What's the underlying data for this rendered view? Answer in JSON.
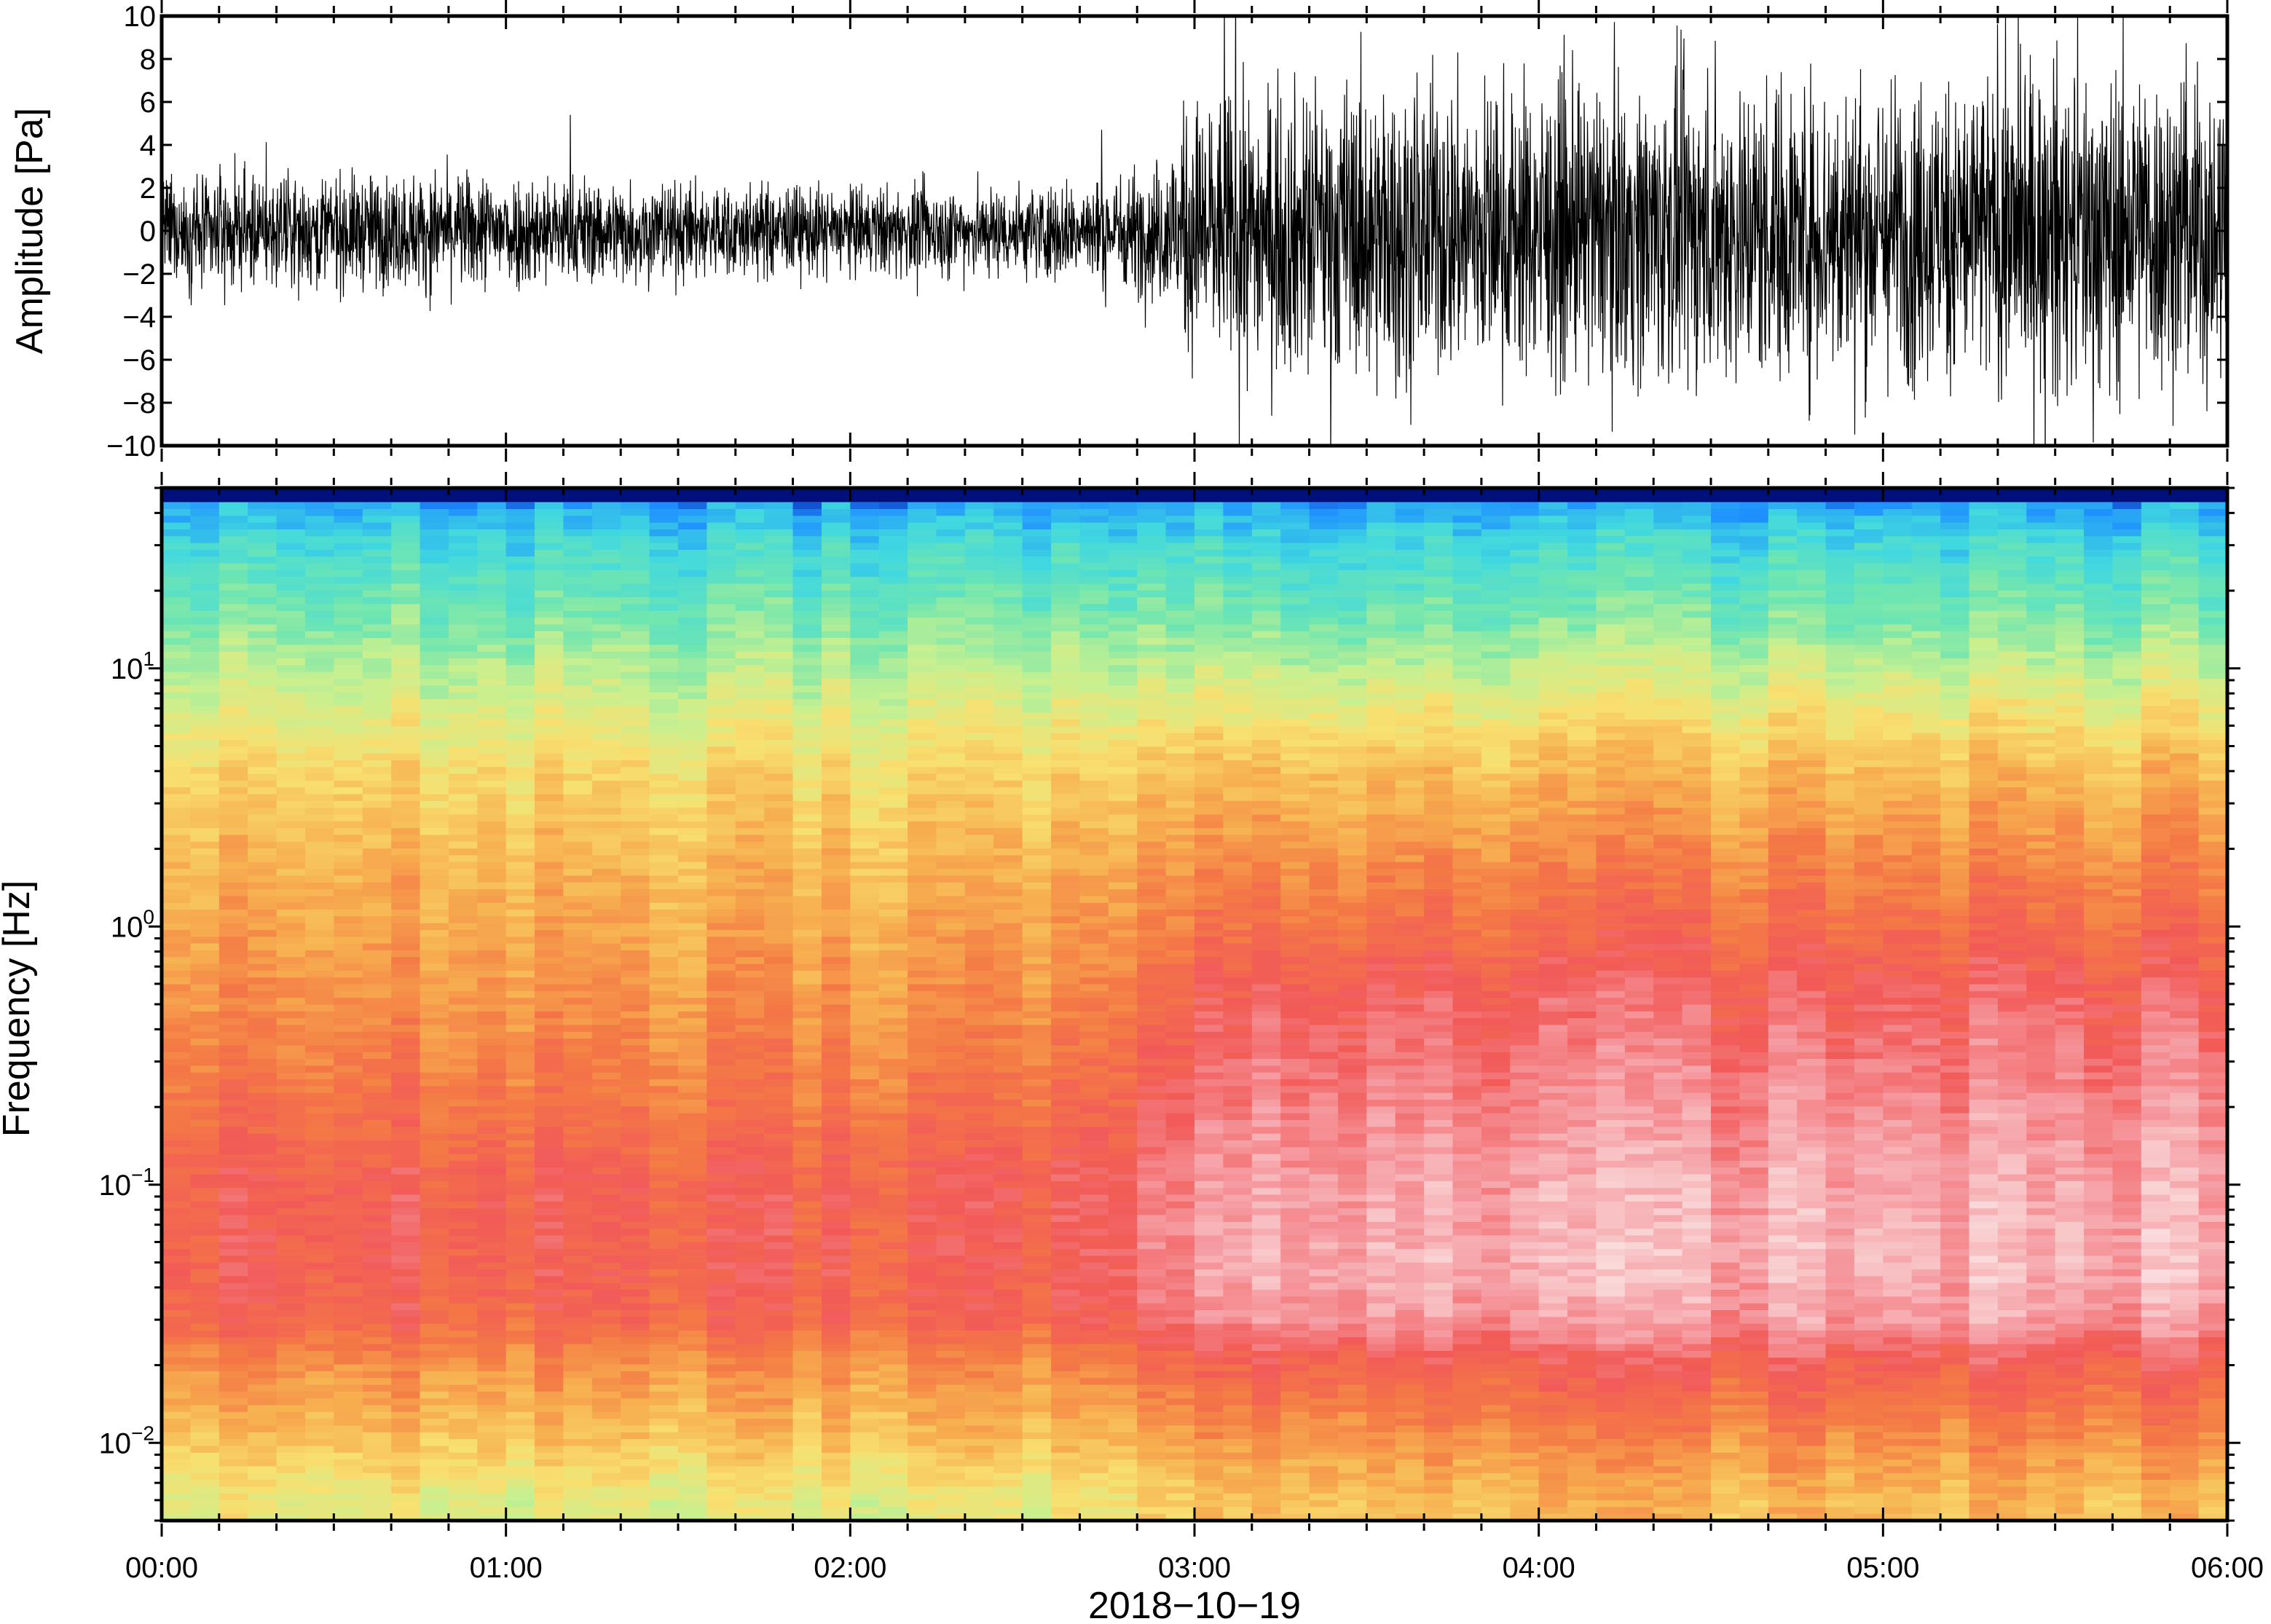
{
  "chart_data": [
    {
      "type": "line",
      "panel": "waveform",
      "ylabel": "Amplitude [Pa]",
      "ylim": [
        -10,
        10
      ],
      "yticks": [
        10,
        8,
        6,
        4,
        2,
        0,
        -2,
        -4,
        -6,
        -8,
        -10
      ],
      "ytick_labels": [
        "10",
        "8",
        "6",
        "4",
        "2",
        "0",
        "−2",
        "−4",
        "−6",
        "−8",
        "−10"
      ],
      "xlim_hours": [
        0,
        6
      ],
      "amplitude_envelope": {
        "x_hours": [
          0.0,
          0.5,
          1.0,
          1.5,
          2.0,
          2.5,
          2.75,
          2.9,
          3.0,
          3.5,
          4.0,
          4.5,
          5.0,
          5.5,
          6.0
        ],
        "typical_peak_pa": [
          3.0,
          3.2,
          3.3,
          2.8,
          2.5,
          2.6,
          3.0,
          4.0,
          7.5,
          8.5,
          8.2,
          8.8,
          8.5,
          9.5,
          9.0
        ]
      },
      "color": "#000000"
    },
    {
      "type": "heatmap",
      "panel": "spectrogram",
      "ylabel": "Frequency [Hz]",
      "yscale": "log",
      "ylim_hz": [
        0.005,
        50
      ],
      "yticks": [
        {
          "base": "10",
          "exp": "1",
          "value": 10
        },
        {
          "base": "10",
          "exp": "0",
          "value": 1
        },
        {
          "base": "10",
          "exp": "−1",
          "value": 0.1
        },
        {
          "base": "10",
          "exp": "−2",
          "value": 0.01
        }
      ],
      "xlim_hours": [
        0,
        6
      ],
      "colormap": [
        "#00008a",
        "#1e90ff",
        "#40d8e0",
        "#70e6b0",
        "#c8f090",
        "#f8e070",
        "#f7b050",
        "#f47a45",
        "#f25a58",
        "#f59aa0",
        "#fadcdc"
      ],
      "band_profile": {
        "freq_hz": [
          45,
          30,
          15,
          8,
          4,
          2,
          1,
          0.5,
          0.2,
          0.1,
          0.05,
          0.03,
          0.02,
          0.01,
          0.006
        ],
        "level_early": [
          0.12,
          0.22,
          0.32,
          0.42,
          0.52,
          0.58,
          0.62,
          0.66,
          0.72,
          0.78,
          0.78,
          0.76,
          0.66,
          0.56,
          0.46
        ],
        "level_late": [
          0.12,
          0.22,
          0.32,
          0.45,
          0.58,
          0.66,
          0.74,
          0.82,
          0.88,
          0.92,
          0.94,
          0.9,
          0.78,
          0.66,
          0.58
        ]
      },
      "transition_hour": 2.9
    }
  ],
  "xaxis": {
    "tick_labels": [
      "00:00",
      "01:00",
      "02:00",
      "03:00",
      "04:00",
      "05:00",
      "06:00"
    ],
    "tick_hours": [
      0,
      1,
      2,
      3,
      4,
      5,
      6
    ],
    "minor_tick_minutes": 10,
    "label": "2018−10−19"
  }
}
